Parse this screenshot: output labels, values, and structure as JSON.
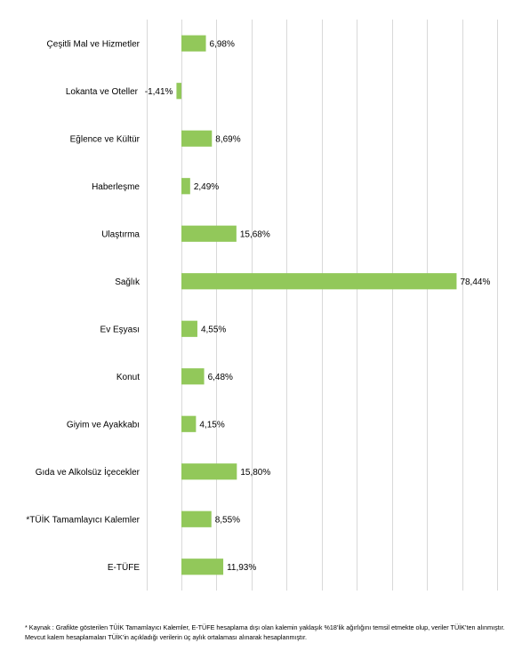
{
  "chart_data": {
    "type": "bar",
    "orientation": "horizontal",
    "categories": [
      "Çeşitli Mal ve Hizmetler",
      "Lokanta ve Oteller",
      "Eğlence ve Kültür",
      "Haberleşme",
      "Ulaştırma",
      "Sağlık",
      "Ev Eşyası",
      "Konut",
      "Giyim ve Ayakkabı",
      "Gıda ve Alkolsüz İçecekler",
      "*TÜİK Tamamlayıcı Kalemler",
      "E-TÜFE"
    ],
    "values": [
      6.98,
      -1.41,
      8.69,
      2.49,
      15.68,
      78.44,
      4.55,
      6.48,
      4.15,
      15.8,
      8.55,
      11.93
    ],
    "value_labels": [
      "6,98%",
      "-1,41%",
      "8,69%",
      "2,49%",
      "15,68%",
      "78,44%",
      "4,55%",
      "6,48%",
      "4,15%",
      "15,80%",
      "8,55%",
      "11,93%"
    ],
    "xlim": [
      -10,
      90
    ],
    "grid": true,
    "bar_color": "#92c85a",
    "title": "",
    "xlabel": "",
    "ylabel": ""
  },
  "footnote": "*  Kaynak : Grafikte gösterilen TÜİK Tamamlayıcı Kalemler, E-TÜFE hesaplama dışı olan kalemin yaklaşık %18’lik ağırlığını temsil etmekte olup, veriler TÜİK’ten alınmıştır. Mevcut kalem hesaplamaları TÜİK’in açıkladığı verilerin üç aylık ortalaması alınarak hesaplanmıştır."
}
